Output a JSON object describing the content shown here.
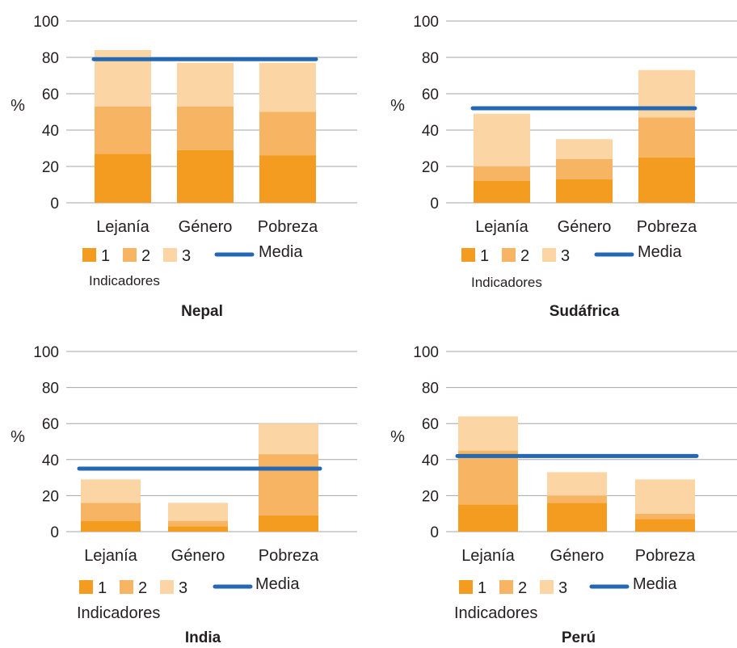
{
  "chart_data": [
    {
      "type": "bar",
      "title": "Nepal",
      "ylabel": "%",
      "xlabel": "Indicadores",
      "ylim": [
        0,
        100
      ],
      "yticks": [
        0,
        20,
        40,
        60,
        80,
        100
      ],
      "categories": [
        "Lejanía",
        "Género",
        "Pobreza"
      ],
      "stacked": true,
      "series": [
        {
          "name": "1",
          "values": [
            27,
            29,
            26
          ]
        },
        {
          "name": "2",
          "values": [
            26,
            24,
            24
          ]
        },
        {
          "name": "3",
          "values": [
            31,
            24,
            27
          ]
        }
      ],
      "reference_line": {
        "name": "Media",
        "value": 79
      },
      "grid": "horizontal",
      "legend": "bottom"
    },
    {
      "type": "bar",
      "title": "Sudáfrica",
      "ylabel": "%",
      "xlabel": "Indicadores",
      "ylim": [
        0,
        100
      ],
      "yticks": [
        0,
        20,
        40,
        60,
        80,
        100
      ],
      "categories": [
        "Lejanía",
        "Género",
        "Pobreza"
      ],
      "stacked": true,
      "series": [
        {
          "name": "1",
          "values": [
            12,
            13,
            25
          ]
        },
        {
          "name": "2",
          "values": [
            8,
            11,
            22
          ]
        },
        {
          "name": "3",
          "values": [
            29,
            11,
            26
          ]
        }
      ],
      "reference_line": {
        "name": "Media",
        "value": 52
      },
      "grid": "horizontal",
      "legend": "bottom"
    },
    {
      "type": "bar",
      "title": "India",
      "ylabel": "%",
      "xlabel": "Indicadores",
      "ylim": [
        0,
        100
      ],
      "yticks": [
        0,
        20,
        40,
        60,
        80,
        100
      ],
      "categories": [
        "Lejanía",
        "Género",
        "Pobreza"
      ],
      "stacked": true,
      "series": [
        {
          "name": "1",
          "values": [
            6,
            3,
            9
          ]
        },
        {
          "name": "2",
          "values": [
            10,
            3,
            34
          ]
        },
        {
          "name": "3",
          "values": [
            13,
            10,
            17
          ]
        }
      ],
      "reference_line": {
        "name": "Media",
        "value": 35
      },
      "grid": "horizontal",
      "legend": "bottom"
    },
    {
      "type": "bar",
      "title": "Perú",
      "ylabel": "%",
      "xlabel": "Indicadores",
      "ylim": [
        0,
        100
      ],
      "yticks": [
        0,
        20,
        40,
        60,
        80,
        100
      ],
      "categories": [
        "Lejanía",
        "Género",
        "Pobreza"
      ],
      "stacked": true,
      "series": [
        {
          "name": "1",
          "values": [
            15,
            16,
            7
          ]
        },
        {
          "name": "2",
          "values": [
            30,
            4,
            3
          ]
        },
        {
          "name": "3",
          "values": [
            19,
            13,
            19
          ]
        }
      ],
      "reference_line": {
        "name": "Media",
        "value": 42
      },
      "grid": "horizontal",
      "legend": "bottom"
    }
  ],
  "colors": {
    "series_1": "#f39c1f",
    "series_2": "#f7b462",
    "series_3": "#fbd6a4",
    "media": "#2468b4",
    "grid": "#a6a6a6"
  }
}
